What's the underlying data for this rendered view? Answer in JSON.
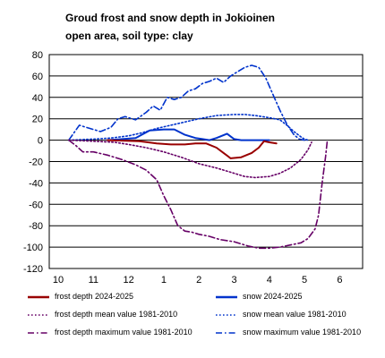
{
  "chart_data": {
    "type": "line",
    "title_lines": [
      "Groud frost and snow depth in Jokioinen",
      "open area, soil type: clay"
    ],
    "ylim": [
      -120,
      80
    ],
    "yticks": [
      80,
      60,
      40,
      20,
      0,
      -20,
      -40,
      -60,
      -80,
      -100,
      -120
    ],
    "xlim": [
      10,
      6.8
    ],
    "x_tick_labels": [
      "10",
      "11",
      "12",
      "1",
      "2",
      "3",
      "4",
      "5",
      "6"
    ],
    "grid": true,
    "legend_placement": "bottom",
    "series": [
      {
        "name": "frost depth 2024-2025",
        "color": "#990000",
        "style": "solid",
        "points": [
          [
            11.4,
            0
          ],
          [
            12.3,
            -1
          ],
          [
            12.8,
            -3
          ],
          [
            1.2,
            -4
          ],
          [
            1.6,
            -4
          ],
          [
            1.9,
            -3
          ],
          [
            2.2,
            -3
          ],
          [
            2.5,
            -7
          ],
          [
            2.7,
            -12
          ],
          [
            2.9,
            -17
          ],
          [
            3.2,
            -16
          ],
          [
            3.5,
            -12
          ],
          [
            3.7,
            -7
          ],
          [
            3.85,
            -1
          ],
          [
            4.0,
            -2
          ],
          [
            4.2,
            -3
          ]
        ]
      },
      {
        "name": "snow 2024-2025",
        "color": "#0033cc",
        "style": "solid",
        "points": [
          [
            11.4,
            0
          ],
          [
            12.2,
            2
          ],
          [
            12.6,
            9
          ],
          [
            1.0,
            10
          ],
          [
            1.3,
            10
          ],
          [
            1.6,
            5
          ],
          [
            1.9,
            2
          ],
          [
            2.1,
            1
          ],
          [
            2.3,
            0
          ],
          [
            2.5,
            2
          ],
          [
            2.8,
            6
          ],
          [
            3.0,
            1
          ],
          [
            3.2,
            0
          ],
          [
            3.5,
            0
          ],
          [
            3.8,
            0
          ],
          [
            4.0,
            0
          ]
        ]
      },
      {
        "name": "frost depth mean value 1981-2010",
        "color": "#660066",
        "style": "dotted",
        "points": [
          [
            10.3,
            0
          ],
          [
            11.0,
            -1
          ],
          [
            11.6,
            -2
          ],
          [
            12.0,
            -4
          ],
          [
            12.5,
            -7
          ],
          [
            1.0,
            -11
          ],
          [
            1.5,
            -16
          ],
          [
            2.0,
            -22
          ],
          [
            2.5,
            -26
          ],
          [
            3.0,
            -31
          ],
          [
            3.3,
            -34
          ],
          [
            3.6,
            -35
          ],
          [
            4.0,
            -34
          ],
          [
            4.3,
            -31
          ],
          [
            4.6,
            -26
          ],
          [
            4.9,
            -18
          ],
          [
            5.1,
            -9
          ],
          [
            5.2,
            -2
          ]
        ]
      },
      {
        "name": "snow mean value 1981-2010",
        "color": "#0033cc",
        "style": "dotted",
        "points": [
          [
            10.3,
            0
          ],
          [
            11.0,
            1
          ],
          [
            11.5,
            2
          ],
          [
            12.0,
            4
          ],
          [
            12.4,
            7
          ],
          [
            12.8,
            11
          ],
          [
            1.2,
            14
          ],
          [
            1.6,
            17
          ],
          [
            2.0,
            20
          ],
          [
            2.5,
            23
          ],
          [
            3.0,
            24
          ],
          [
            3.3,
            24
          ],
          [
            3.6,
            23
          ],
          [
            4.0,
            21
          ],
          [
            4.3,
            19
          ],
          [
            4.5,
            14
          ],
          [
            4.7,
            8
          ],
          [
            4.9,
            3
          ],
          [
            5.0,
            1
          ],
          [
            5.1,
            0
          ]
        ]
      },
      {
        "name": "frost depth maximum value 1981-2010",
        "color": "#660066",
        "style": "dashdot",
        "points": [
          [
            10.3,
            0
          ],
          [
            10.5,
            -5
          ],
          [
            10.7,
            -11
          ],
          [
            11.0,
            -11
          ],
          [
            11.4,
            -14
          ],
          [
            11.8,
            -18
          ],
          [
            12.2,
            -23
          ],
          [
            12.5,
            -28
          ],
          [
            12.8,
            -37
          ],
          [
            1.0,
            -52
          ],
          [
            1.2,
            -65
          ],
          [
            1.4,
            -80
          ],
          [
            1.6,
            -85
          ],
          [
            1.8,
            -86
          ],
          [
            2.0,
            -88
          ],
          [
            2.3,
            -90
          ],
          [
            2.6,
            -93
          ],
          [
            3.0,
            -95
          ],
          [
            3.4,
            -99
          ],
          [
            3.7,
            -101
          ],
          [
            4.0,
            -101
          ],
          [
            4.3,
            -100
          ],
          [
            4.6,
            -98
          ],
          [
            4.9,
            -96
          ],
          [
            5.1,
            -92
          ],
          [
            5.3,
            -83
          ],
          [
            5.4,
            -70
          ],
          [
            5.5,
            -40
          ],
          [
            5.6,
            -15
          ],
          [
            5.65,
            0
          ]
        ]
      },
      {
        "name": "snow maximum value 1981-2010",
        "color": "#0033cc",
        "style": "dashdot",
        "points": [
          [
            10.3,
            0
          ],
          [
            10.6,
            14
          ],
          [
            10.9,
            11
          ],
          [
            11.2,
            8
          ],
          [
            11.5,
            12
          ],
          [
            11.7,
            20
          ],
          [
            11.9,
            22
          ],
          [
            12.2,
            19
          ],
          [
            12.5,
            26
          ],
          [
            12.7,
            32
          ],
          [
            12.9,
            28
          ],
          [
            1.1,
            40
          ],
          [
            1.3,
            38
          ],
          [
            1.5,
            40
          ],
          [
            1.7,
            46
          ],
          [
            1.9,
            48
          ],
          [
            2.1,
            53
          ],
          [
            2.3,
            55
          ],
          [
            2.5,
            58
          ],
          [
            2.7,
            54
          ],
          [
            2.9,
            60
          ],
          [
            3.1,
            64
          ],
          [
            3.3,
            68
          ],
          [
            3.5,
            70
          ],
          [
            3.7,
            68
          ],
          [
            3.9,
            58
          ],
          [
            4.1,
            43
          ],
          [
            4.3,
            28
          ],
          [
            4.5,
            15
          ],
          [
            4.7,
            5
          ],
          [
            4.85,
            1
          ],
          [
            5.0,
            0
          ]
        ]
      }
    ]
  }
}
